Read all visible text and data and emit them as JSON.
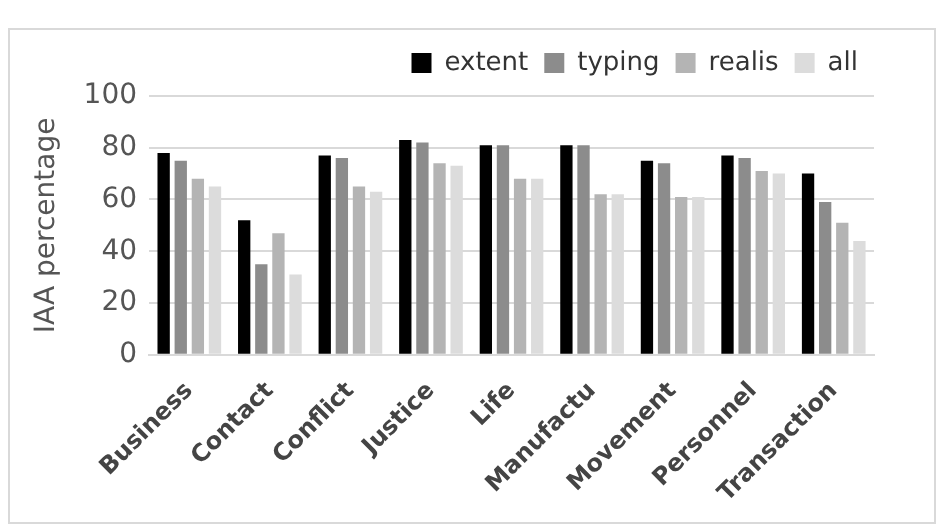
{
  "chart_data": {
    "type": "bar",
    "ylabel": "IAA percentage",
    "categories": [
      "Business",
      "Contact",
      "Conflict",
      "Justice",
      "Life",
      "Manufactu",
      "Movement",
      "Personnel",
      "Transaction"
    ],
    "series": [
      {
        "name": "extent",
        "color": "#000000",
        "values": [
          78,
          52,
          77,
          83,
          81,
          81,
          75,
          77,
          70
        ]
      },
      {
        "name": "typing",
        "color": "#8c8c8c",
        "values": [
          75,
          35,
          76,
          82,
          81,
          81,
          74,
          76,
          59
        ]
      },
      {
        "name": "realis",
        "color": "#b4b4b4",
        "values": [
          68,
          47,
          65,
          74,
          68,
          62,
          61,
          71,
          51
        ]
      },
      {
        "name": "all",
        "color": "#dcdcdc",
        "values": [
          65,
          31,
          63,
          73,
          68,
          62,
          61,
          70,
          44
        ]
      }
    ],
    "ylim": [
      0,
      100
    ],
    "yticks": [
      0,
      20,
      40,
      60,
      80,
      100
    ],
    "grid": "y",
    "legend": "top"
  }
}
